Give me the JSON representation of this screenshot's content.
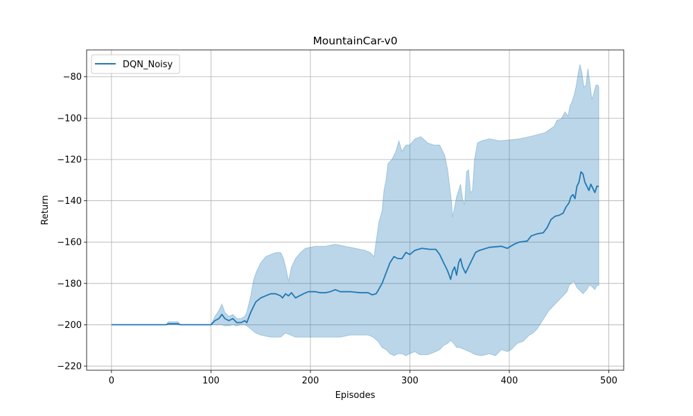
{
  "chart_data": {
    "type": "line",
    "title": "MountainCar-v0",
    "xlabel": "Episodes",
    "ylabel": "Return",
    "xlim": [
      -25,
      515
    ],
    "ylim": [
      -222,
      -67
    ],
    "xticks": [
      0,
      100,
      200,
      300,
      400,
      500
    ],
    "xtick_labels": [
      "0",
      "100",
      "200",
      "300",
      "400",
      "500"
    ],
    "yticks": [
      -220,
      -200,
      -180,
      -160,
      -140,
      -120,
      -100,
      -80
    ],
    "ytick_labels": [
      "−220",
      "−200",
      "−180",
      "−160",
      "−140",
      "−120",
      "−100",
      "−80"
    ],
    "grid": true,
    "legend": {
      "position": "top-left",
      "entries": [
        "DQN_Noisy"
      ]
    },
    "colors": {
      "line": "#1f77b4",
      "band": "#1f77b4",
      "grid": "#b0b0b0"
    },
    "series": [
      {
        "name": "DQN_Noisy",
        "mean": [
          [
            0,
            -200
          ],
          [
            55,
            -200
          ],
          [
            57,
            -199.5
          ],
          [
            67,
            -199.5
          ],
          [
            69,
            -200
          ],
          [
            100,
            -200
          ],
          [
            104,
            -198
          ],
          [
            108,
            -197
          ],
          [
            111,
            -195
          ],
          [
            114,
            -197
          ],
          [
            118,
            -198
          ],
          [
            122,
            -197
          ],
          [
            126,
            -199
          ],
          [
            130,
            -199
          ],
          [
            134,
            -198
          ],
          [
            136,
            -199
          ],
          [
            140,
            -194
          ],
          [
            145,
            -189
          ],
          [
            150,
            -187
          ],
          [
            155,
            -186
          ],
          [
            160,
            -185
          ],
          [
            165,
            -185
          ],
          [
            170,
            -186
          ],
          [
            172,
            -187
          ],
          [
            175,
            -185
          ],
          [
            178,
            -186
          ],
          [
            181,
            -184.5
          ],
          [
            185,
            -187
          ],
          [
            189,
            -186
          ],
          [
            193,
            -185
          ],
          [
            198,
            -184
          ],
          [
            205,
            -184
          ],
          [
            210,
            -184.5
          ],
          [
            215,
            -184.5
          ],
          [
            220,
            -184
          ],
          [
            225,
            -183
          ],
          [
            230,
            -184
          ],
          [
            240,
            -184
          ],
          [
            250,
            -184.5
          ],
          [
            258,
            -184.5
          ],
          [
            262,
            -185.5
          ],
          [
            266,
            -185
          ],
          [
            268,
            -183.5
          ],
          [
            272,
            -180
          ],
          [
            276,
            -175
          ],
          [
            280,
            -170
          ],
          [
            284,
            -167
          ],
          [
            288,
            -168
          ],
          [
            292,
            -168
          ],
          [
            296,
            -165
          ],
          [
            300,
            -166
          ],
          [
            305,
            -164
          ],
          [
            312,
            -163
          ],
          [
            320,
            -163.5
          ],
          [
            326,
            -163.5
          ],
          [
            330,
            -166
          ],
          [
            334,
            -170
          ],
          [
            338,
            -174
          ],
          [
            341,
            -178
          ],
          [
            343,
            -174
          ],
          [
            345,
            -172
          ],
          [
            347,
            -176
          ],
          [
            349,
            -170
          ],
          [
            351,
            -168
          ],
          [
            353,
            -172
          ],
          [
            356,
            -175
          ],
          [
            358,
            -173
          ],
          [
            362,
            -169
          ],
          [
            366,
            -165
          ],
          [
            370,
            -164
          ],
          [
            380,
            -162.5
          ],
          [
            392,
            -162
          ],
          [
            398,
            -163
          ],
          [
            405,
            -161
          ],
          [
            410,
            -160
          ],
          [
            418,
            -159.5
          ],
          [
            422,
            -157
          ],
          [
            428,
            -156
          ],
          [
            434,
            -155.5
          ],
          [
            438,
            -153
          ],
          [
            442,
            -149
          ],
          [
            446,
            -147.5
          ],
          [
            450,
            -147
          ],
          [
            454,
            -146
          ],
          [
            457,
            -143
          ],
          [
            460,
            -141
          ],
          [
            462,
            -138
          ],
          [
            464,
            -137
          ],
          [
            466,
            -139
          ],
          [
            468,
            -133
          ],
          [
            470,
            -131
          ],
          [
            472,
            -126
          ],
          [
            474,
            -127
          ],
          [
            476,
            -131
          ],
          [
            478,
            -133
          ],
          [
            480,
            -135
          ],
          [
            482,
            -132
          ],
          [
            484,
            -134
          ],
          [
            486,
            -136
          ],
          [
            488,
            -133
          ],
          [
            490,
            -133
          ]
        ],
        "upper": [
          [
            0,
            -200
          ],
          [
            55,
            -200
          ],
          [
            57,
            -198.5
          ],
          [
            67,
            -198.5
          ],
          [
            69,
            -200
          ],
          [
            100,
            -200
          ],
          [
            104,
            -196
          ],
          [
            108,
            -193
          ],
          [
            111,
            -190
          ],
          [
            114,
            -194
          ],
          [
            118,
            -196
          ],
          [
            122,
            -195
          ],
          [
            126,
            -197
          ],
          [
            130,
            -197
          ],
          [
            134,
            -196
          ],
          [
            136,
            -194
          ],
          [
            140,
            -186
          ],
          [
            143,
            -178
          ],
          [
            146,
            -174
          ],
          [
            150,
            -170
          ],
          [
            155,
            -167
          ],
          [
            160,
            -166
          ],
          [
            166,
            -165
          ],
          [
            170,
            -165
          ],
          [
            173,
            -168
          ],
          [
            176,
            -174
          ],
          [
            178,
            -179
          ],
          [
            181,
            -172
          ],
          [
            185,
            -168
          ],
          [
            190,
            -165
          ],
          [
            195,
            -163
          ],
          [
            205,
            -162
          ],
          [
            215,
            -162
          ],
          [
            225,
            -161
          ],
          [
            235,
            -162
          ],
          [
            245,
            -163
          ],
          [
            255,
            -164
          ],
          [
            260,
            -165
          ],
          [
            264,
            -167
          ],
          [
            266,
            -160
          ],
          [
            269,
            -150
          ],
          [
            272,
            -145
          ],
          [
            274,
            -135
          ],
          [
            276,
            -130
          ],
          [
            278,
            -122
          ],
          [
            282,
            -120
          ],
          [
            286,
            -116
          ],
          [
            289,
            -111
          ],
          [
            292,
            -116
          ],
          [
            296,
            -113
          ],
          [
            300,
            -113
          ],
          [
            305,
            -110
          ],
          [
            311,
            -109
          ],
          [
            318,
            -112
          ],
          [
            324,
            -113
          ],
          [
            330,
            -113
          ],
          [
            335,
            -118
          ],
          [
            338,
            -125
          ],
          [
            340,
            -133
          ],
          [
            342,
            -141
          ],
          [
            343,
            -148
          ],
          [
            345,
            -143
          ],
          [
            347,
            -138
          ],
          [
            349,
            -135
          ],
          [
            351,
            -132
          ],
          [
            353,
            -139
          ],
          [
            355,
            -142
          ],
          [
            357,
            -126
          ],
          [
            359,
            -125
          ],
          [
            361,
            -136
          ],
          [
            363,
            -135
          ],
          [
            365,
            -120
          ],
          [
            368,
            -112
          ],
          [
            372,
            -111
          ],
          [
            380,
            -110
          ],
          [
            390,
            -111
          ],
          [
            400,
            -110.5
          ],
          [
            410,
            -110
          ],
          [
            420,
            -109
          ],
          [
            428,
            -108
          ],
          [
            436,
            -107
          ],
          [
            442,
            -105
          ],
          [
            445,
            -104
          ],
          [
            448,
            -101
          ],
          [
            452,
            -100.5
          ],
          [
            456,
            -97
          ],
          [
            459,
            -99
          ],
          [
            461,
            -94
          ],
          [
            463,
            -92
          ],
          [
            465,
            -89
          ],
          [
            467,
            -85
          ],
          [
            469,
            -79
          ],
          [
            471,
            -74
          ],
          [
            473,
            -78
          ],
          [
            475,
            -85
          ],
          [
            477,
            -84
          ],
          [
            479,
            -76
          ],
          [
            481,
            -83
          ],
          [
            483,
            -91
          ],
          [
            485,
            -88
          ],
          [
            487,
            -84
          ],
          [
            489,
            -84
          ],
          [
            490,
            -85
          ]
        ],
        "lower": [
          [
            0,
            -200
          ],
          [
            55,
            -200
          ],
          [
            57,
            -200
          ],
          [
            67,
            -200
          ],
          [
            69,
            -200
          ],
          [
            100,
            -200
          ],
          [
            104,
            -200
          ],
          [
            108,
            -200
          ],
          [
            111,
            -200
          ],
          [
            114,
            -200.5
          ],
          [
            118,
            -200.5
          ],
          [
            122,
            -200
          ],
          [
            126,
            -200.5
          ],
          [
            130,
            -200
          ],
          [
            134,
            -200
          ],
          [
            136,
            -200.5
          ],
          [
            140,
            -202
          ],
          [
            145,
            -204
          ],
          [
            150,
            -205
          ],
          [
            160,
            -206
          ],
          [
            170,
            -206
          ],
          [
            175,
            -204
          ],
          [
            180,
            -205
          ],
          [
            185,
            -206
          ],
          [
            190,
            -206
          ],
          [
            200,
            -206
          ],
          [
            210,
            -206
          ],
          [
            220,
            -206
          ],
          [
            230,
            -206
          ],
          [
            240,
            -205
          ],
          [
            250,
            -205
          ],
          [
            258,
            -205
          ],
          [
            263,
            -206
          ],
          [
            268,
            -208
          ],
          [
            272,
            -211
          ],
          [
            276,
            -212
          ],
          [
            280,
            -214
          ],
          [
            284,
            -215
          ],
          [
            288,
            -214
          ],
          [
            292,
            -214
          ],
          [
            296,
            -215
          ],
          [
            300,
            -214
          ],
          [
            305,
            -213
          ],
          [
            310,
            -214.5
          ],
          [
            318,
            -214.5
          ],
          [
            326,
            -213
          ],
          [
            330,
            -212
          ],
          [
            334,
            -210
          ],
          [
            338,
            -209
          ],
          [
            341,
            -207.5
          ],
          [
            344,
            -209
          ],
          [
            347,
            -211
          ],
          [
            350,
            -211
          ],
          [
            355,
            -212
          ],
          [
            360,
            -213
          ],
          [
            366,
            -214.5
          ],
          [
            372,
            -215
          ],
          [
            380,
            -214
          ],
          [
            386,
            -215
          ],
          [
            392,
            -212
          ],
          [
            398,
            -213
          ],
          [
            402,
            -212
          ],
          [
            408,
            -209
          ],
          [
            414,
            -208
          ],
          [
            420,
            -205
          ],
          [
            424,
            -204
          ],
          [
            428,
            -202
          ],
          [
            432,
            -199
          ],
          [
            436,
            -196
          ],
          [
            440,
            -193
          ],
          [
            446,
            -190
          ],
          [
            450,
            -188
          ],
          [
            454,
            -186
          ],
          [
            458,
            -184
          ],
          [
            460,
            -181
          ],
          [
            462,
            -180
          ],
          [
            465,
            -179
          ],
          [
            468,
            -182
          ],
          [
            472,
            -184
          ],
          [
            474,
            -185
          ],
          [
            476,
            -184
          ],
          [
            478,
            -183
          ],
          [
            480,
            -181
          ],
          [
            482,
            -181
          ],
          [
            484,
            -182
          ],
          [
            486,
            -183
          ],
          [
            488,
            -181
          ],
          [
            490,
            -181
          ]
        ]
      }
    ]
  }
}
